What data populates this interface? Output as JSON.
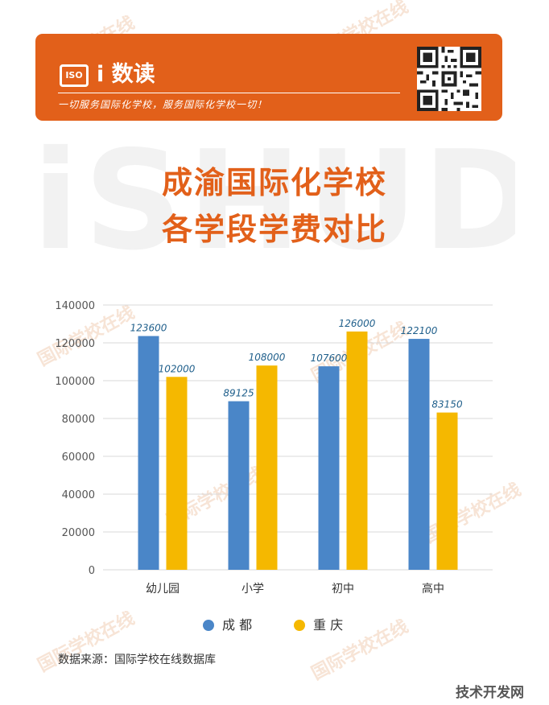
{
  "banner": {
    "logo_text": "ISO",
    "brand": "i 数读",
    "slogan": "一切服务国际化学校，服务国际化学校一切！"
  },
  "watermark": {
    "big_text": "iSHUDU",
    "small_text": "国际学校在线"
  },
  "title": {
    "line1": "成渝国际化学校",
    "line2": "各学段学费对比"
  },
  "colors": {
    "accent": "#e2601a",
    "series_chengdu": "#4a86c8",
    "series_chongqing": "#f5b800",
    "label": "#1f5f8b"
  },
  "chart_data": {
    "type": "bar",
    "categories": [
      "幼儿园",
      "小学",
      "初中",
      "高中"
    ],
    "series": [
      {
        "name": "成 都",
        "values": [
          123600,
          89125,
          107600,
          122100
        ]
      },
      {
        "name": "重 庆",
        "values": [
          102000,
          108000,
          126000,
          83150
        ]
      }
    ],
    "ylim": [
      0,
      140000
    ],
    "yticks": [
      "0",
      "20000",
      "40000",
      "60000",
      "80000",
      "100000",
      "120000",
      "140000"
    ],
    "grid": true,
    "legend_position": "bottom"
  },
  "legend": [
    "成 都",
    "重 庆"
  ],
  "source": "数据来源：国际学校在线数据库",
  "corner_mark": "技术开发网"
}
